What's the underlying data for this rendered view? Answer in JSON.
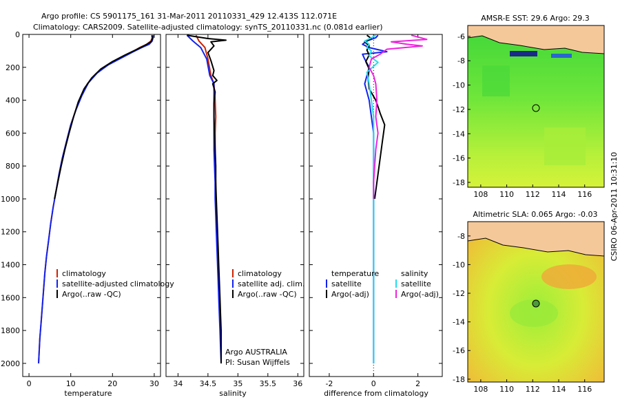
{
  "header": {
    "line1": "Argo profile: CS 5901175_161 31-Mar-2011 20110331_429 12.413S 112.071E",
    "line2": "Climatology: CARS2009. Satellite-adjusted climatology: synTS_20110331.nc (0.081d earlier)"
  },
  "side_label": "CSIRO 06-Apr-2011 10:31:10",
  "colors": {
    "red": "#cc2200",
    "blue": "#1122ee",
    "black": "#000000",
    "cyan": "#22ddee",
    "magenta": "#ee22dd",
    "land": "#f5c89a"
  },
  "chart_data": [
    {
      "type": "line",
      "title": "",
      "xlabel": "temperature",
      "ylabel": "",
      "xlim": [
        -1.5,
        31.5
      ],
      "ylim": [
        2080,
        0
      ],
      "x_ticks": [
        0,
        10,
        20,
        30
      ],
      "x_tick_labels": [
        "0",
        "10",
        "20",
        "30"
      ],
      "y_ticks": [
        0,
        200,
        400,
        600,
        800,
        1000,
        1200,
        1400,
        1600,
        1800,
        2000
      ],
      "y_tick_labels": [
        "0",
        "200",
        "400",
        "600",
        "800",
        "1000",
        "1200",
        "1400",
        "1600",
        "1800",
        "2000"
      ],
      "legend": [
        "climatology",
        "satellite-adjusted climatology",
        "Argo(..raw -QC)"
      ],
      "series": [
        {
          "name": "climatology",
          "color": "red",
          "points": [
            [
              29.6,
              5
            ],
            [
              29.5,
              20
            ],
            [
              29.2,
              40
            ],
            [
              28.2,
              60
            ],
            [
              26.5,
              80
            ],
            [
              24.5,
              110
            ],
            [
              21.5,
              150
            ],
            [
              18.5,
              190
            ],
            [
              16,
              240
            ],
            [
              14,
              300
            ],
            [
              12.5,
              380
            ],
            [
              11.2,
              460
            ],
            [
              10,
              550
            ],
            [
              9,
              650
            ],
            [
              8,
              750
            ],
            [
              7.2,
              850
            ],
            [
              6.5,
              950
            ],
            [
              5.8,
              1050
            ],
            [
              5.2,
              1150
            ],
            [
              4.7,
              1250
            ],
            [
              4.2,
              1350
            ],
            [
              3.8,
              1450
            ],
            [
              3.5,
              1550
            ],
            [
              3.2,
              1650
            ],
            [
              2.9,
              1750
            ],
            [
              2.6,
              1850
            ],
            [
              2.4,
              1950
            ],
            [
              2.3,
              2000
            ]
          ]
        },
        {
          "name": "satellite-adjusted climatology",
          "color": "blue",
          "points": [
            [
              29.8,
              5
            ],
            [
              29.7,
              20
            ],
            [
              29.5,
              40
            ],
            [
              28.8,
              60
            ],
            [
              27,
              80
            ],
            [
              25,
              105
            ],
            [
              22,
              145
            ],
            [
              19,
              185
            ],
            [
              16.3,
              235
            ],
            [
              14.2,
              295
            ],
            [
              12.6,
              375
            ],
            [
              11.3,
              455
            ],
            [
              10,
              550
            ],
            [
              9,
              650
            ],
            [
              8,
              750
            ],
            [
              7.2,
              850
            ],
            [
              6.5,
              950
            ],
            [
              5.8,
              1050
            ],
            [
              5.2,
              1150
            ],
            [
              4.7,
              1250
            ],
            [
              4.2,
              1350
            ],
            [
              3.8,
              1450
            ],
            [
              3.5,
              1550
            ],
            [
              3.2,
              1650
            ],
            [
              2.9,
              1750
            ],
            [
              2.6,
              1850
            ],
            [
              2.4,
              1950
            ],
            [
              2.3,
              2000
            ]
          ]
        },
        {
          "name": "Argo(..raw -QC)",
          "color": "black",
          "points": [
            [
              29.4,
              5
            ],
            [
              29.6,
              25
            ],
            [
              29.2,
              45
            ],
            [
              27.5,
              70
            ],
            [
              25.5,
              95
            ],
            [
              23,
              125
            ],
            [
              20,
              165
            ],
            [
              17.2,
              210
            ],
            [
              15,
              265
            ],
            [
              13.2,
              330
            ],
            [
              11.8,
              410
            ],
            [
              10.7,
              500
            ],
            [
              9.6,
              600
            ],
            [
              8.6,
              700
            ],
            [
              7.7,
              800
            ],
            [
              6.9,
              900
            ],
            [
              6.1,
              1000
            ]
          ]
        }
      ]
    },
    {
      "type": "line",
      "title": "",
      "xlabel": "salinity",
      "ylabel": "",
      "xlim": [
        33.8,
        36.1
      ],
      "ylim": [
        2080,
        0
      ],
      "x_ticks": [
        34,
        34.5,
        35,
        35.5,
        36
      ],
      "x_tick_labels": [
        "34",
        "34.5",
        "35",
        "35.5",
        "36"
      ],
      "legend": [
        "climatology",
        "satellite adj. clim.",
        "Argo(..raw -QC)"
      ],
      "annotation": [
        "Argo AUSTRALIA",
        "PI: Susan Wijffels"
      ],
      "series": [
        {
          "name": "climatology",
          "color": "red",
          "points": [
            [
              34.3,
              5
            ],
            [
              34.35,
              40
            ],
            [
              34.45,
              80
            ],
            [
              34.5,
              150
            ],
            [
              34.55,
              250
            ],
            [
              34.6,
              300
            ],
            [
              34.62,
              400
            ],
            [
              34.63,
              500
            ],
            [
              34.62,
              600
            ],
            [
              34.62,
              700
            ],
            [
              34.62,
              800
            ],
            [
              34.63,
              900
            ],
            [
              34.63,
              1000
            ],
            [
              34.64,
              1100
            ],
            [
              34.65,
              1200
            ],
            [
              34.66,
              1300
            ],
            [
              34.67,
              1400
            ],
            [
              34.68,
              1500
            ],
            [
              34.69,
              1600
            ],
            [
              34.7,
              1700
            ],
            [
              34.71,
              1800
            ],
            [
              34.72,
              1900
            ],
            [
              34.72,
              2000
            ]
          ]
        },
        {
          "name": "satellite adj. clim.",
          "color": "blue",
          "points": [
            [
              34.15,
              5
            ],
            [
              34.25,
              40
            ],
            [
              34.38,
              80
            ],
            [
              34.48,
              150
            ],
            [
              34.53,
              250
            ],
            [
              34.6,
              300
            ],
            [
              34.6,
              400
            ],
            [
              34.6,
              500
            ],
            [
              34.6,
              600
            ],
            [
              34.6,
              700
            ],
            [
              34.61,
              800
            ],
            [
              34.62,
              900
            ],
            [
              34.62,
              1000
            ],
            [
              34.63,
              1100
            ],
            [
              34.64,
              1200
            ],
            [
              34.65,
              1300
            ],
            [
              34.66,
              1400
            ],
            [
              34.67,
              1500
            ],
            [
              34.68,
              1600
            ],
            [
              34.69,
              1700
            ],
            [
              34.7,
              1800
            ],
            [
              34.71,
              1900
            ],
            [
              34.72,
              2000
            ]
          ]
        },
        {
          "name": "Argo(..raw -QC)",
          "color": "black",
          "points": [
            [
              34.15,
              5
            ],
            [
              34.5,
              25
            ],
            [
              34.8,
              35
            ],
            [
              34.55,
              45
            ],
            [
              34.6,
              70
            ],
            [
              34.5,
              110
            ],
            [
              34.55,
              160
            ],
            [
              34.6,
              220
            ],
            [
              34.58,
              250
            ],
            [
              34.65,
              280
            ],
            [
              34.58,
              300
            ],
            [
              34.62,
              350
            ],
            [
              34.6,
              420
            ],
            [
              34.6,
              500
            ],
            [
              34.61,
              600
            ],
            [
              34.62,
              700
            ],
            [
              34.63,
              800
            ],
            [
              34.63,
              900
            ],
            [
              34.64,
              1000
            ],
            [
              34.65,
              1100
            ],
            [
              34.66,
              1200
            ],
            [
              34.67,
              1300
            ],
            [
              34.68,
              1400
            ],
            [
              34.69,
              1500
            ],
            [
              34.7,
              1600
            ],
            [
              34.71,
              1700
            ],
            [
              34.72,
              1800
            ],
            [
              34.72,
              1900
            ],
            [
              34.72,
              2000
            ]
          ]
        }
      ]
    },
    {
      "type": "line",
      "title": "",
      "xlabel": "difference from climatology",
      "ylabel": "",
      "xlim": [
        -2.9,
        3.1
      ],
      "ylim": [
        2080,
        0
      ],
      "x_ticks": [
        -2,
        0,
        2
      ],
      "x_tick_labels": [
        "-2",
        "0",
        "2"
      ],
      "legend_left": {
        "title": "temperature",
        "items": [
          "satellite",
          "Argo(-adj)"
        ]
      },
      "legend_right": {
        "title": "salinity",
        "items": [
          "satellite",
          "Argo(-adj)"
        ]
      },
      "series": [
        {
          "name": "temperature satellite",
          "color": "blue",
          "points": [
            [
              0.2,
              5
            ],
            [
              0.1,
              20
            ],
            [
              -0.3,
              40
            ],
            [
              -0.5,
              60
            ],
            [
              -0.2,
              80
            ],
            [
              0.6,
              105
            ],
            [
              -0.5,
              120
            ],
            [
              -0.4,
              150
            ],
            [
              -0.2,
              200
            ],
            [
              -0.4,
              300
            ],
            [
              -0.2,
              400
            ],
            [
              -0.1,
              500
            ],
            [
              0,
              600
            ],
            [
              0,
              800
            ],
            [
              0,
              1000
            ],
            [
              0,
              1500
            ],
            [
              0,
              2000
            ]
          ]
        },
        {
          "name": "temperature Argo(-adj)",
          "color": "black",
          "points": [
            [
              -0.3,
              5
            ],
            [
              -0.1,
              25
            ],
            [
              -0.4,
              45
            ],
            [
              -0.2,
              70
            ],
            [
              -0.3,
              95
            ],
            [
              -0.2,
              125
            ],
            [
              -0.35,
              165
            ],
            [
              -0.2,
              210
            ],
            [
              -0.25,
              265
            ],
            [
              -0.2,
              330
            ],
            [
              0.1,
              400
            ],
            [
              0.3,
              480
            ],
            [
              0.5,
              550
            ],
            [
              0.4,
              650
            ],
            [
              0.3,
              750
            ],
            [
              0.2,
              850
            ],
            [
              0.1,
              950
            ],
            [
              0.05,
              1000
            ]
          ]
        },
        {
          "name": "salinity satellite",
          "color": "cyan",
          "points": [
            [
              0.1,
              5
            ],
            [
              -0.1,
              20
            ],
            [
              -0.4,
              40
            ],
            [
              -0.2,
              60
            ],
            [
              -0.3,
              80
            ],
            [
              -0.1,
              100
            ],
            [
              -0.2,
              130
            ],
            [
              0.2,
              170
            ],
            [
              -0.3,
              230
            ],
            [
              -0.2,
              300
            ],
            [
              -0.1,
              400
            ],
            [
              0,
              500
            ],
            [
              0,
              700
            ],
            [
              0,
              1000
            ],
            [
              0,
              1500
            ],
            [
              0,
              2000
            ]
          ]
        },
        {
          "name": "salinity Argo(-adj)",
          "color": "magenta",
          "points": [
            [
              1.7,
              5
            ],
            [
              2.4,
              30
            ],
            [
              0.8,
              45
            ],
            [
              1.5,
              60
            ],
            [
              2.2,
              70
            ],
            [
              0.6,
              90
            ],
            [
              0.3,
              120
            ],
            [
              -0.1,
              150
            ],
            [
              -0.2,
              200
            ],
            [
              0,
              250
            ],
            [
              0.1,
              300
            ],
            [
              0.15,
              400
            ],
            [
              0.1,
              500
            ],
            [
              0.2,
              600
            ],
            [
              0.1,
              700
            ],
            [
              0.05,
              800
            ],
            [
              0,
              900
            ],
            [
              0,
              1000
            ]
          ]
        }
      ]
    }
  ],
  "maps": [
    {
      "title": "AMSR-E SST: 29.6 Argo: 29.3",
      "x_tick_labels": [
        "108",
        "110",
        "112",
        "114",
        "116"
      ],
      "y_tick_labels": [
        "-6",
        "-8",
        "-10",
        "-12",
        "-14",
        "-16",
        "-18"
      ]
    },
    {
      "title": "Altimetric SLA: 0.065 Argo: -0.03",
      "x_tick_labels": [
        "108",
        "110",
        "112",
        "114",
        "116"
      ],
      "y_tick_labels": [
        "-8",
        "-10",
        "-12",
        "-14",
        "-16",
        "-18"
      ]
    }
  ]
}
